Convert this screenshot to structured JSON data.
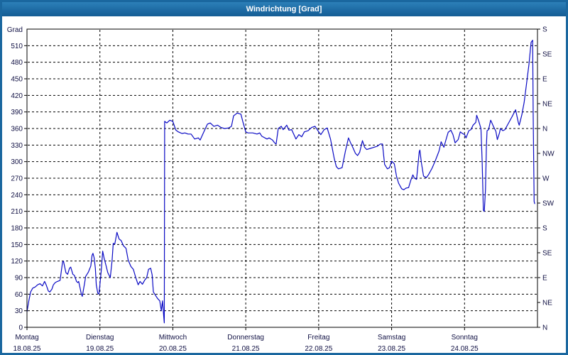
{
  "window": {
    "title": "Windrichtung [Grad]"
  },
  "colors": {
    "titlebar_top": "#2c80b8",
    "titlebar_bottom": "#155d95",
    "window_border": "#1a679f",
    "series_line": "#0a0ac4",
    "grid": "#000000",
    "frame": "#000000",
    "tick_text": "#111144",
    "plot_background": "#ffffff"
  },
  "chart_data": {
    "type": "line",
    "title": "Windrichtung [Grad]",
    "ylabel_left": "Grad",
    "grid": "dashed",
    "legend": "none",
    "y_axis_left": {
      "min": 0,
      "max": 540,
      "tick_step": 30,
      "ticks": [
        0,
        30,
        60,
        90,
        120,
        150,
        180,
        210,
        240,
        270,
        300,
        330,
        360,
        390,
        420,
        450,
        480,
        510
      ]
    },
    "y_axis_right": {
      "unit": "compass",
      "ticks": [
        {
          "deg": 0,
          "label": "N"
        },
        {
          "deg": 45,
          "label": "NE"
        },
        {
          "deg": 90,
          "label": "E"
        },
        {
          "deg": 135,
          "label": "SE"
        },
        {
          "deg": 180,
          "label": "S"
        },
        {
          "deg": 225,
          "label": "SW"
        },
        {
          "deg": 270,
          "label": "W"
        },
        {
          "deg": 315,
          "label": "NW"
        },
        {
          "deg": 360,
          "label": "N"
        },
        {
          "deg": 405,
          "label": "NE"
        },
        {
          "deg": 450,
          "label": "E"
        },
        {
          "deg": 495,
          "label": "SE"
        },
        {
          "deg": 540,
          "label": "S"
        }
      ]
    },
    "x_axis": {
      "unit": "hours_from_start",
      "range_hours": [
        0,
        168
      ],
      "hours_per_day": 24,
      "days": [
        {
          "name": "Montag",
          "date": "18.08.25"
        },
        {
          "name": "Dienstag",
          "date": "19.08.25"
        },
        {
          "name": "Mittwoch",
          "date": "20.08.25"
        },
        {
          "name": "Donnerstag",
          "date": "21.08.25"
        },
        {
          "name": "Freitag",
          "date": "22.08.25"
        },
        {
          "name": "Samstag",
          "date": "23.08.25"
        },
        {
          "name": "Sonntag",
          "date": "24.08.25"
        }
      ]
    },
    "series": [
      {
        "name": "Windrichtung",
        "color": "#0a0ac4",
        "points": [
          [
            0,
            28
          ],
          [
            0.6,
            48
          ],
          [
            1.2,
            64
          ],
          [
            1.9,
            71
          ],
          [
            2.7,
            73
          ],
          [
            3.5,
            77
          ],
          [
            4.3,
            79
          ],
          [
            5.1,
            75
          ],
          [
            5.8,
            83
          ],
          [
            6.3,
            77
          ],
          [
            7,
            66
          ],
          [
            7.5,
            64
          ],
          [
            8.2,
            69
          ],
          [
            8.7,
            77
          ],
          [
            9.3,
            81
          ],
          [
            10,
            83
          ],
          [
            10.9,
            85
          ],
          [
            11.7,
            118
          ],
          [
            12,
            120
          ],
          [
            12.8,
            99
          ],
          [
            13.4,
            96
          ],
          [
            14,
            107
          ],
          [
            14.4,
            109
          ],
          [
            15.1,
            96
          ],
          [
            15.6,
            94
          ],
          [
            16.3,
            83
          ],
          [
            16.7,
            81
          ],
          [
            17,
            83
          ],
          [
            17.9,
            60
          ],
          [
            18.2,
            56
          ],
          [
            19,
            81
          ],
          [
            19.3,
            92
          ],
          [
            20.2,
            100
          ],
          [
            20.5,
            104
          ],
          [
            21,
            111
          ],
          [
            21.4,
            130
          ],
          [
            21.7,
            134
          ],
          [
            22.1,
            126
          ],
          [
            22.5,
            107
          ],
          [
            22.8,
            77
          ],
          [
            23.3,
            62
          ],
          [
            23.7,
            60
          ],
          [
            24,
            77
          ],
          [
            24.5,
            107
          ],
          [
            24.9,
            138
          ],
          [
            25.4,
            125
          ],
          [
            26,
            112
          ],
          [
            26.6,
            99
          ],
          [
            27.4,
            90
          ],
          [
            28,
            120
          ],
          [
            28.4,
            152
          ],
          [
            28.9,
            151
          ],
          [
            29.6,
            172
          ],
          [
            30.3,
            160
          ],
          [
            31,
            157
          ],
          [
            31.7,
            148
          ],
          [
            32.6,
            143
          ],
          [
            33.3,
            122
          ],
          [
            34.2,
            110
          ],
          [
            35,
            105
          ],
          [
            35.8,
            90
          ],
          [
            36.6,
            77
          ],
          [
            37.2,
            83
          ],
          [
            38,
            78
          ],
          [
            38.7,
            85
          ],
          [
            39.4,
            90
          ],
          [
            40,
            105
          ],
          [
            40.7,
            107
          ],
          [
            41.2,
            95
          ],
          [
            41.6,
            64
          ],
          [
            42.3,
            58
          ],
          [
            43,
            52
          ],
          [
            43.7,
            48
          ],
          [
            44.2,
            30
          ],
          [
            44.6,
            48
          ],
          [
            45,
            20
          ],
          [
            45.2,
            8
          ],
          [
            45.3,
            373
          ],
          [
            46,
            370
          ],
          [
            47,
            375
          ],
          [
            48,
            373
          ],
          [
            49,
            357
          ],
          [
            49.8,
            354
          ],
          [
            51,
            351
          ],
          [
            52,
            352
          ],
          [
            53,
            350
          ],
          [
            54,
            350
          ],
          [
            55.2,
            341
          ],
          [
            56.4,
            343
          ],
          [
            57,
            339
          ],
          [
            58.2,
            354
          ],
          [
            59.4,
            368
          ],
          [
            60.3,
            370
          ],
          [
            61.5,
            364
          ],
          [
            62.7,
            366
          ],
          [
            63.8,
            362
          ],
          [
            65,
            360
          ],
          [
            66.4,
            361
          ],
          [
            67.3,
            364
          ],
          [
            68,
            383
          ],
          [
            69.2,
            388
          ],
          [
            70.4,
            386
          ],
          [
            71,
            373
          ],
          [
            72,
            354
          ],
          [
            72.7,
            352
          ],
          [
            74.3,
            352
          ],
          [
            75.7,
            350
          ],
          [
            76.6,
            352
          ],
          [
            77.3,
            346
          ],
          [
            79,
            341
          ],
          [
            79.7,
            343
          ],
          [
            80.8,
            339
          ],
          [
            81.5,
            334
          ],
          [
            82,
            332
          ],
          [
            82.7,
            360
          ],
          [
            83.7,
            364
          ],
          [
            84.3,
            358
          ],
          [
            85.5,
            366
          ],
          [
            86.2,
            357
          ],
          [
            87.1,
            358
          ],
          [
            88.5,
            341
          ],
          [
            89.5,
            349
          ],
          [
            90.4,
            345
          ],
          [
            91.3,
            354
          ],
          [
            92.5,
            356
          ],
          [
            93.7,
            362
          ],
          [
            94.8,
            364
          ],
          [
            96,
            354
          ],
          [
            96.7,
            349
          ],
          [
            97.8,
            358
          ],
          [
            98.8,
            361
          ],
          [
            99.9,
            341
          ],
          [
            101.1,
            306
          ],
          [
            101.8,
            291
          ],
          [
            102.5,
            287
          ],
          [
            103.7,
            289
          ],
          [
            104.8,
            319
          ],
          [
            105.8,
            343
          ],
          [
            106.5,
            334
          ],
          [
            107.2,
            326
          ],
          [
            108.1,
            315
          ],
          [
            108.8,
            311
          ],
          [
            109.5,
            317
          ],
          [
            110.4,
            338
          ],
          [
            111.1,
            326
          ],
          [
            111.8,
            322
          ],
          [
            113,
            324
          ],
          [
            114.2,
            326
          ],
          [
            115.3,
            328
          ],
          [
            116.3,
            332
          ],
          [
            117,
            332
          ],
          [
            117.7,
            295
          ],
          [
            118.6,
            287
          ],
          [
            119.3,
            289
          ],
          [
            120,
            301
          ],
          [
            120.9,
            296
          ],
          [
            121.6,
            274
          ],
          [
            122.3,
            261
          ],
          [
            123.3,
            251
          ],
          [
            124,
            249
          ],
          [
            124.7,
            252
          ],
          [
            125.6,
            253
          ],
          [
            126.3,
            266
          ],
          [
            127,
            276
          ],
          [
            127.5,
            270
          ],
          [
            128.2,
            268
          ],
          [
            129.1,
            318
          ],
          [
            129.3,
            321
          ],
          [
            129.8,
            298
          ],
          [
            130.5,
            274
          ],
          [
            131.4,
            271
          ],
          [
            132.1,
            276
          ],
          [
            133.3,
            288
          ],
          [
            134.4,
            302
          ],
          [
            135.6,
            319
          ],
          [
            136.3,
            336
          ],
          [
            137.2,
            326
          ],
          [
            137.9,
            340
          ],
          [
            138.6,
            353
          ],
          [
            139.5,
            357
          ],
          [
            140.2,
            349
          ],
          [
            140.9,
            334
          ],
          [
            141.9,
            340
          ],
          [
            142.6,
            354
          ],
          [
            143.3,
            351
          ],
          [
            144,
            349
          ],
          [
            144.5,
            343
          ],
          [
            145.4,
            356
          ],
          [
            146.1,
            358
          ],
          [
            146.8,
            366
          ],
          [
            147.7,
            371
          ],
          [
            148,
            384
          ],
          [
            148.7,
            373
          ],
          [
            149.4,
            360
          ],
          [
            149.8,
            300
          ],
          [
            150.2,
            212
          ],
          [
            150.5,
            210
          ],
          [
            150.9,
            250
          ],
          [
            151.2,
            330
          ],
          [
            151.4,
            356
          ],
          [
            151.9,
            358
          ],
          [
            152.6,
            375
          ],
          [
            153.5,
            364
          ],
          [
            154.3,
            355
          ],
          [
            154.8,
            340
          ],
          [
            155.5,
            352
          ],
          [
            155.8,
            360
          ],
          [
            156.6,
            356
          ],
          [
            157.3,
            358
          ],
          [
            158.4,
            369
          ],
          [
            159.6,
            381
          ],
          [
            160.8,
            394
          ],
          [
            161.7,
            371
          ],
          [
            162,
            366
          ],
          [
            162.9,
            386
          ],
          [
            163.1,
            392
          ],
          [
            163.6,
            407
          ],
          [
            164.3,
            437
          ],
          [
            165.2,
            476
          ],
          [
            165.9,
            516
          ],
          [
            166.4,
            520
          ],
          [
            166.6,
            380
          ],
          [
            166.9,
            228
          ],
          [
            167.1,
            224
          ]
        ]
      }
    ]
  }
}
